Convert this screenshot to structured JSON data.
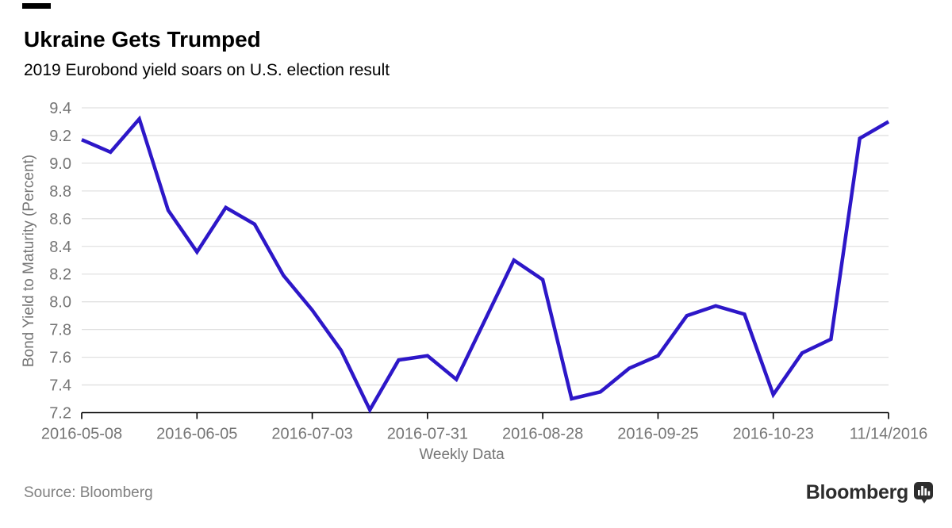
{
  "header": {
    "title": "Ukraine Gets Trumped",
    "subtitle": "2019 Eurobond yield soars on U.S. election result"
  },
  "footer": {
    "source": "Source: Bloomberg",
    "brand": "Bloomberg"
  },
  "colors": {
    "line": "#2d17c8",
    "grid": "#e0e0e0",
    "axis": "#000000",
    "tick_text": "#757575",
    "logo": "#2d2d2d"
  },
  "chart_data": {
    "type": "line",
    "title": "Ukraine Gets Trumped",
    "subtitle": "2019 Eurobond yield soars on U.S. election result",
    "xlabel": "Weekly Data",
    "ylabel": "Bond Yield to Maturity (Percent)",
    "ylim": [
      7.2,
      9.4
    ],
    "y_tick_labels": [
      "9.4",
      "9.2",
      "9.0",
      "8.8",
      "8.6",
      "8.4",
      "8.2",
      "8.0",
      "7.8",
      "7.6",
      "7.4",
      "7.2"
    ],
    "x_tick_labels": [
      "2016-05-08",
      "2016-06-05",
      "2016-07-03",
      "2016-07-31",
      "2016-08-28",
      "2016-09-25",
      "2016-10-23",
      "11/14/2016"
    ],
    "x_tick_indices": [
      0,
      4,
      8,
      12,
      16,
      20,
      24,
      28
    ],
    "n_points": 29,
    "values": [
      9.17,
      9.08,
      9.32,
      8.66,
      8.36,
      8.68,
      8.56,
      8.19,
      7.94,
      7.65,
      7.22,
      7.58,
      7.61,
      7.44,
      7.87,
      8.3,
      8.16,
      7.3,
      7.35,
      7.52,
      7.61,
      7.9,
      7.97,
      7.91,
      7.33,
      7.63,
      7.73,
      9.18,
      9.3
    ],
    "grid": true,
    "legend": false,
    "line_color": "#2d17c8"
  }
}
